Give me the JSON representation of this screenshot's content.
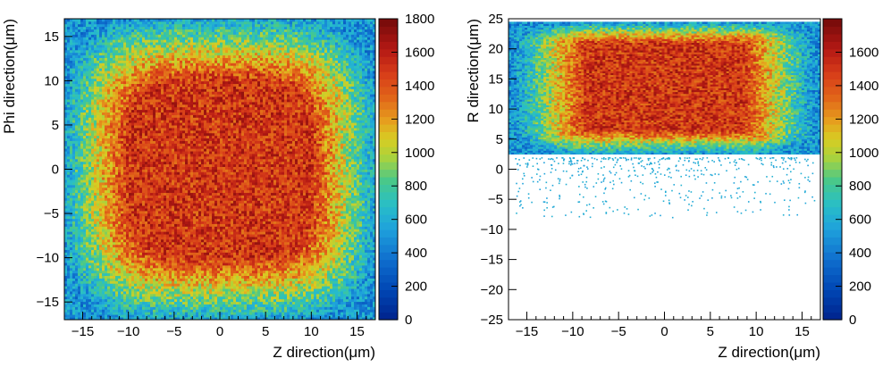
{
  "chart_data": [
    {
      "type": "heatmap",
      "id": "left",
      "title": "",
      "xlabel": "Z direction(μm)",
      "ylabel": "Phi direction(μm)",
      "xlim": [
        -17,
        17
      ],
      "ylim": [
        -17,
        17
      ],
      "xticks": [
        -15,
        -10,
        -5,
        0,
        5,
        10,
        15
      ],
      "xtick_labels": [
        "−15",
        "−10",
        "−5",
        "0",
        "5",
        "10",
        "15"
      ],
      "yticks": [
        -15,
        -10,
        -5,
        0,
        5,
        10,
        15
      ],
      "ytick_labels": [
        "−15",
        "−10",
        "−5",
        "0",
        "5",
        "10",
        "15"
      ],
      "zlim": [
        0,
        1800
      ],
      "colorbar_ticks": [
        0,
        200,
        400,
        600,
        800,
        1000,
        1200,
        1400,
        1600,
        1800
      ],
      "colorbar_labels": [
        "0",
        "200",
        "400",
        "600",
        "800",
        "1000",
        "1200",
        "1400",
        "1600",
        "1800"
      ],
      "profile": "square-plateau",
      "peak_value": 1500,
      "edge_value": 500,
      "plateau_half_width": 11
    },
    {
      "type": "heatmap",
      "id": "right",
      "title": "",
      "xlabel": "Z direction(μm)",
      "ylabel": "R direction(μm)",
      "xlim": [
        -17,
        17
      ],
      "ylim": [
        -25,
        25
      ],
      "xticks": [
        -15,
        -10,
        -5,
        0,
        5,
        10,
        15
      ],
      "xtick_labels": [
        "−15",
        "−10",
        "−5",
        "0",
        "5",
        "10",
        "15"
      ],
      "yticks": [
        -25,
        -20,
        -15,
        -10,
        -5,
        0,
        5,
        10,
        15,
        20,
        25
      ],
      "ytick_labels": [
        "−25",
        "−20",
        "−15",
        "−10",
        "−5",
        "0",
        "5",
        "10",
        "15",
        "20",
        "25"
      ],
      "zlim": [
        0,
        1800
      ],
      "colorbar_ticks": [
        0,
        200,
        400,
        600,
        800,
        1000,
        1200,
        1400,
        1600
      ],
      "colorbar_labels": [
        "0",
        "200",
        "400",
        "600",
        "800",
        "1000",
        "1200",
        "1400",
        "1600"
      ],
      "profile": "slab",
      "slab_r_range": [
        2.5,
        24.5
      ],
      "sparse_tail_r_range": [
        -8,
        2
      ],
      "peak_value": 1500,
      "edge_value": 500
    }
  ]
}
